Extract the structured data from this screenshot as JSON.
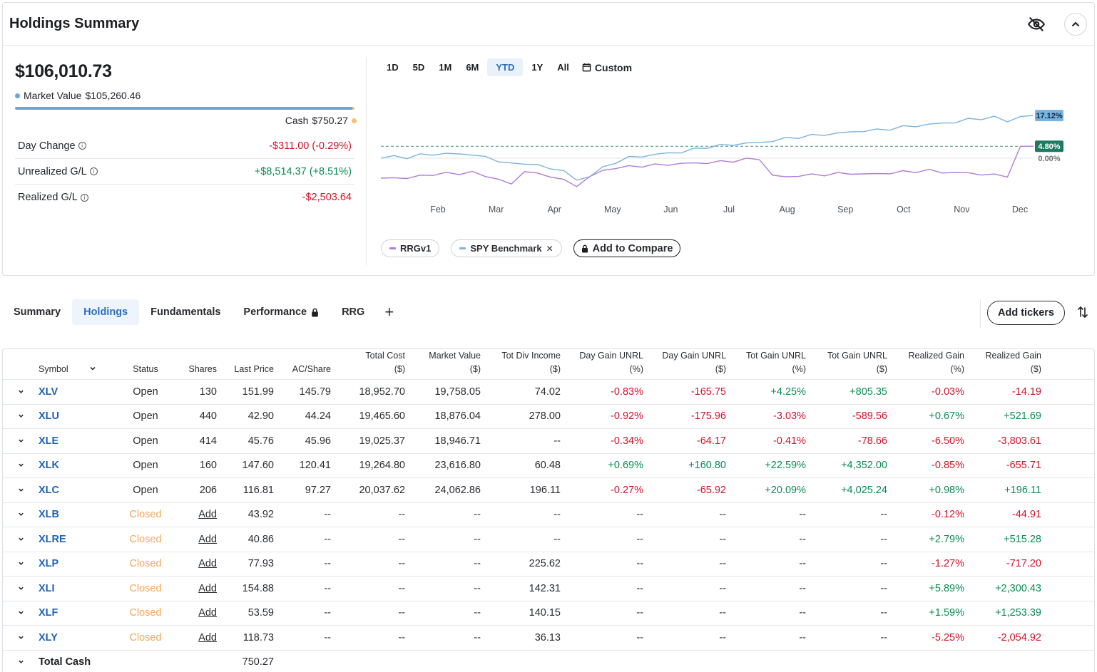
{
  "header": {
    "title": "Holdings Summary"
  },
  "summary": {
    "total_value": "$106,010.73",
    "market_value_label": "Market Value",
    "market_value": "$105,260.46",
    "cash_label": "Cash",
    "cash_value": "$750.27",
    "market_value_share": 0.993,
    "metrics": [
      {
        "label": "Day Change",
        "value": "-$311.00 (-0.29%)",
        "tone": "neg"
      },
      {
        "label": "Unrealized G/L",
        "value": "+$8,514.37 (+8.51%)",
        "tone": "pos"
      },
      {
        "label": "Realized G/L",
        "value": "-$2,503.64",
        "tone": "neg"
      }
    ],
    "colors": {
      "market_value": "#6aa7d8",
      "cash": "#f2c46b"
    }
  },
  "range_tabs": [
    "1D",
    "5D",
    "1M",
    "6M",
    "YTD",
    "1Y",
    "All"
  ],
  "range_active": "YTD",
  "custom_label": "Custom",
  "chart_data": {
    "type": "line",
    "x_ticks": [
      "Feb",
      "Mar",
      "Apr",
      "May",
      "Jun",
      "Jul",
      "Aug",
      "Sep",
      "Oct",
      "Nov",
      "Dec"
    ],
    "ylabel": "",
    "baseline_label": "0.00%",
    "series": [
      {
        "name": "SPY Benchmark",
        "color": "#7bb3e0",
        "end_label": "17.12%",
        "x": [
          0,
          2,
          4,
          6,
          8,
          10,
          12,
          14,
          16,
          18,
          20,
          22,
          24,
          26,
          28,
          30,
          32,
          34,
          36,
          38,
          40,
          42,
          44,
          46,
          48,
          50,
          52,
          54,
          56,
          58,
          60,
          62,
          64,
          66,
          68,
          70,
          72,
          74,
          76,
          78,
          80,
          82,
          84,
          86,
          88,
          90,
          92,
          94,
          96,
          98,
          100
        ],
        "values": [
          0.0,
          0.8,
          0.3,
          1.2,
          1.8,
          1.5,
          2.0,
          1.2,
          0.5,
          -1.0,
          -2.5,
          -1.8,
          -3.0,
          -4.0,
          -5.0,
          -9.0,
          -7.0,
          -4.0,
          -1.5,
          0.2,
          0.8,
          1.5,
          2.0,
          2.5,
          3.5,
          4.5,
          5.0,
          5.5,
          6.0,
          6.2,
          7.0,
          7.8,
          8.5,
          9.0,
          9.5,
          10.0,
          10.5,
          11.0,
          11.2,
          11.8,
          12.5,
          13.0,
          13.5,
          14.0,
          14.5,
          15.5,
          16.0,
          16.3,
          15.0,
          16.5,
          17.12
        ]
      },
      {
        "name": "RRGv1",
        "color": "#b07cd8",
        "end_label": "4.80%",
        "x": [
          0,
          2,
          4,
          6,
          8,
          10,
          12,
          14,
          16,
          18,
          20,
          22,
          24,
          26,
          28,
          30,
          32,
          34,
          36,
          38,
          40,
          42,
          44,
          46,
          48,
          50,
          52,
          54,
          56,
          58,
          60,
          62,
          64,
          66,
          68,
          70,
          72,
          74,
          76,
          78,
          80,
          82,
          84,
          86,
          88,
          90,
          92,
          94,
          96,
          98,
          100
        ],
        "values": [
          -8.0,
          -7.5,
          -8.2,
          -7.0,
          -6.5,
          -6.2,
          -6.0,
          -5.8,
          -7.0,
          -8.5,
          -10.5,
          -5.0,
          -6.5,
          -7.0,
          -9.0,
          -11.0,
          -7.5,
          -5.0,
          -3.8,
          -3.5,
          -3.0,
          -2.8,
          -2.5,
          -2.2,
          -2.0,
          -1.8,
          -1.5,
          -1.0,
          -0.5,
          -0.2,
          -7.0,
          -7.5,
          -7.0,
          -6.8,
          -6.5,
          -6.3,
          -6.0,
          -6.5,
          -6.2,
          -6.0,
          -5.5,
          -5.2,
          -5.0,
          -5.5,
          -6.0,
          -5.8,
          -6.5,
          -6.8,
          -7.0,
          4.2,
          4.8
        ]
      }
    ]
  },
  "legend": {
    "items": [
      {
        "label": "RRGv1",
        "color": "#b07cd8"
      },
      {
        "label": "SPY Benchmark",
        "color": "#7bb3e0",
        "removable": true
      }
    ],
    "compare_label": "Add to Compare"
  },
  "tabs": [
    {
      "label": "Summary",
      "active": false
    },
    {
      "label": "Holdings",
      "active": true
    },
    {
      "label": "Fundamentals",
      "active": false
    },
    {
      "label": "Performance",
      "active": false,
      "locked": true
    },
    {
      "label": "RRG",
      "active": false
    }
  ],
  "add_tickers_label": "Add tickers",
  "table": {
    "headers": [
      [
        "Symbol"
      ],
      [
        "Status"
      ],
      [
        "Shares"
      ],
      [
        "Last Price"
      ],
      [
        "AC/Share"
      ],
      [
        "Total Cost",
        "($)"
      ],
      [
        "Market Value",
        "($)"
      ],
      [
        "Tot Div Income",
        "($)"
      ],
      [
        "Day Gain UNRL",
        "(%)"
      ],
      [
        "Day Gain UNRL",
        "($)"
      ],
      [
        "Tot Gain UNRL",
        "(%)"
      ],
      [
        "Tot Gain UNRL",
        "($)"
      ],
      [
        "Realized Gain",
        "(%)"
      ],
      [
        "Realized Gain",
        "($)"
      ]
    ],
    "rows": [
      {
        "symbol": "XLV",
        "status": "Open",
        "shares": "130",
        "last": "151.99",
        "ac": "145.79",
        "cost": "18,952.70",
        "mv": "19,758.05",
        "div": "74.02",
        "dgp": "-0.83%",
        "dgd": "-165.75",
        "tgp": "+4.25%",
        "tgd": "+805.35",
        "rgp": "-0.03%",
        "rgd": "-14.19"
      },
      {
        "symbol": "XLU",
        "status": "Open",
        "shares": "440",
        "last": "42.90",
        "ac": "44.24",
        "cost": "19,465.60",
        "mv": "18,876.04",
        "div": "278.00",
        "dgp": "-0.92%",
        "dgd": "-175.96",
        "tgp": "-3.03%",
        "tgd": "-589.56",
        "rgp": "+0.67%",
        "rgd": "+521.69"
      },
      {
        "symbol": "XLE",
        "status": "Open",
        "shares": "414",
        "last": "45.76",
        "ac": "45.96",
        "cost": "19,025.37",
        "mv": "18,946.71",
        "div": "--",
        "dgp": "-0.34%",
        "dgd": "-64.17",
        "tgp": "-0.41%",
        "tgd": "-78.66",
        "rgp": "-6.50%",
        "rgd": "-3,803.61"
      },
      {
        "symbol": "XLK",
        "status": "Open",
        "shares": "160",
        "last": "147.60",
        "ac": "120.41",
        "cost": "19,264.80",
        "mv": "23,616.80",
        "div": "60.48",
        "dgp": "+0.69%",
        "dgd": "+160.80",
        "tgp": "+22.59%",
        "tgd": "+4,352.00",
        "rgp": "-0.85%",
        "rgd": "-655.71"
      },
      {
        "symbol": "XLC",
        "status": "Open",
        "shares": "206",
        "last": "116.81",
        "ac": "97.27",
        "cost": "20,037.62",
        "mv": "24,062.86",
        "div": "196.11",
        "dgp": "-0.27%",
        "dgd": "-65.92",
        "tgp": "+20.09%",
        "tgd": "+4,025.24",
        "rgp": "+0.98%",
        "rgd": "+196.11"
      },
      {
        "symbol": "XLB",
        "status": "Closed",
        "shares": "Add",
        "last": "43.92",
        "ac": "--",
        "cost": "--",
        "mv": "--",
        "div": "--",
        "dgp": "--",
        "dgd": "--",
        "tgp": "--",
        "tgd": "--",
        "rgp": "-0.12%",
        "rgd": "-44.91"
      },
      {
        "symbol": "XLRE",
        "status": "Closed",
        "shares": "Add",
        "last": "40.86",
        "ac": "--",
        "cost": "--",
        "mv": "--",
        "div": "--",
        "dgp": "--",
        "dgd": "--",
        "tgp": "--",
        "tgd": "--",
        "rgp": "+2.79%",
        "rgd": "+515.28"
      },
      {
        "symbol": "XLP",
        "status": "Closed",
        "shares": "Add",
        "last": "77.93",
        "ac": "--",
        "cost": "--",
        "mv": "--",
        "div": "225.62",
        "dgp": "--",
        "dgd": "--",
        "tgp": "--",
        "tgd": "--",
        "rgp": "-1.27%",
        "rgd": "-717.20"
      },
      {
        "symbol": "XLI",
        "status": "Closed",
        "shares": "Add",
        "last": "154.88",
        "ac": "--",
        "cost": "--",
        "mv": "--",
        "div": "142.31",
        "dgp": "--",
        "dgd": "--",
        "tgp": "--",
        "tgd": "--",
        "rgp": "+5.89%",
        "rgd": "+2,300.43"
      },
      {
        "symbol": "XLF",
        "status": "Closed",
        "shares": "Add",
        "last": "53.59",
        "ac": "--",
        "cost": "--",
        "mv": "--",
        "div": "140.15",
        "dgp": "--",
        "dgd": "--",
        "tgp": "--",
        "tgd": "--",
        "rgp": "+1.59%",
        "rgd": "+1,253.39"
      },
      {
        "symbol": "XLY",
        "status": "Closed",
        "shares": "Add",
        "last": "118.73",
        "ac": "--",
        "cost": "--",
        "mv": "--",
        "div": "36.13",
        "dgp": "--",
        "dgd": "--",
        "tgp": "--",
        "tgd": "--",
        "rgp": "-5.25%",
        "rgd": "-2,054.92"
      }
    ],
    "total_cash_label": "Total Cash",
    "total_cash_value": "750.27"
  }
}
